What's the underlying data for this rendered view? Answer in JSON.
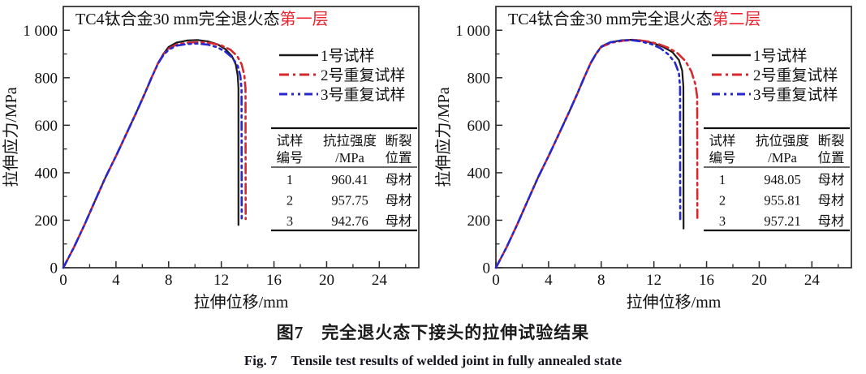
{
  "figure": {
    "caption_zh": "图7　完全退火态下接头的拉伸试验结果",
    "caption_en": "Fig. 7　Tensile test results of welded joint in fully annealed state"
  },
  "colors": {
    "series1": "#1a1a1a",
    "series2": "#d7282f",
    "series3": "#2727cd",
    "title_highlight": "#e8232e",
    "axis": "#2a2a2a",
    "text": "#111111"
  },
  "chart_data": [
    {
      "type": "line",
      "name": "layer1",
      "title_main": "TC4钛合金30 mm完全退火态",
      "title_highlight": "第一层",
      "xlabel": "拉伸位移/mm",
      "ylabel": "拉伸应力/MPa",
      "xlim": [
        0,
        27
      ],
      "ylim": [
        0,
        1100
      ],
      "xticks": [
        0,
        4,
        8,
        12,
        16,
        20,
        24
      ],
      "xminor": [
        2,
        6,
        10,
        14,
        18,
        22,
        26
      ],
      "yticks": [
        0,
        200,
        400,
        600,
        800,
        1000
      ],
      "ytick_labels": [
        "0",
        "200",
        "400",
        "600",
        "800",
        "1 000"
      ],
      "yminor": [
        100,
        300,
        500,
        700,
        900
      ],
      "series": [
        {
          "name": "1号试样",
          "color_key": "series1",
          "dash": "solid",
          "width": 2.2,
          "points": [
            [
              0,
              0
            ],
            [
              0.8,
              85
            ],
            [
              1.6,
              180
            ],
            [
              2.4,
              280
            ],
            [
              3.2,
              380
            ],
            [
              4,
              470
            ],
            [
              4.8,
              565
            ],
            [
              5.6,
              660
            ],
            [
              6.2,
              735
            ],
            [
              6.7,
              800
            ],
            [
              7.2,
              862
            ],
            [
              7.6,
              900
            ],
            [
              8.0,
              930
            ],
            [
              8.6,
              948
            ],
            [
              9.4,
              957
            ],
            [
              10.2,
              959
            ],
            [
              11,
              953
            ],
            [
              11.7,
              941
            ],
            [
              12.3,
              921
            ],
            [
              12.8,
              892
            ],
            [
              13.1,
              856
            ],
            [
              13.25,
              808
            ],
            [
              13.3,
              755
            ],
            [
              13.3,
              180
            ]
          ]
        },
        {
          "name": "2号重复试样",
          "color_key": "series2",
          "dash": "dashdot",
          "width": 2.6,
          "points": [
            [
              0,
              0
            ],
            [
              0.8,
              85
            ],
            [
              1.6,
              180
            ],
            [
              2.4,
              280
            ],
            [
              3.2,
              380
            ],
            [
              4,
              470
            ],
            [
              4.8,
              565
            ],
            [
              5.6,
              660
            ],
            [
              6.2,
              735
            ],
            [
              6.7,
              800
            ],
            [
              7.2,
              862
            ],
            [
              7.6,
              898
            ],
            [
              8.0,
              922
            ],
            [
              8.6,
              940
            ],
            [
              9.5,
              948
            ],
            [
              10.4,
              950
            ],
            [
              11.2,
              946
            ],
            [
              12,
              936
            ],
            [
              12.7,
              918
            ],
            [
              13.2,
              892
            ],
            [
              13.55,
              856
            ],
            [
              13.75,
              810
            ],
            [
              13.84,
              755
            ],
            [
              13.85,
              205
            ]
          ]
        },
        {
          "name": "3号重复试样",
          "color_key": "series3",
          "dash": "dashdotdot",
          "width": 2.6,
          "points": [
            [
              0,
              0
            ],
            [
              0.8,
              85
            ],
            [
              1.6,
              180
            ],
            [
              2.4,
              280
            ],
            [
              3.2,
              380
            ],
            [
              4,
              470
            ],
            [
              4.8,
              565
            ],
            [
              5.6,
              660
            ],
            [
              6.2,
              735
            ],
            [
              6.7,
              800
            ],
            [
              7.2,
              860
            ],
            [
              7.6,
              895
            ],
            [
              8.0,
              918
            ],
            [
              8.6,
              935
            ],
            [
              9.4,
              942
            ],
            [
              10.2,
              944
            ],
            [
              11,
              939
            ],
            [
              11.7,
              928
            ],
            [
              12.3,
              910
            ],
            [
              12.85,
              884
            ],
            [
              13.25,
              850
            ],
            [
              13.45,
              806
            ],
            [
              13.54,
              752
            ],
            [
              13.55,
              192
            ]
          ]
        }
      ],
      "table": {
        "header": [
          [
            "试样",
            "编号"
          ],
          [
            "抗拉强度",
            "/MPa"
          ],
          [
            "断裂",
            "位置"
          ]
        ],
        "rows": [
          [
            "1",
            "960.41",
            "母材"
          ],
          [
            "2",
            "957.75",
            "母材"
          ],
          [
            "3",
            "942.76",
            "母材"
          ]
        ]
      }
    },
    {
      "type": "line",
      "name": "layer2",
      "title_main": "TC4钛合金30 mm完全退火态",
      "title_highlight": "第二层",
      "xlabel": "拉伸位移/mm",
      "ylabel": "拉伸应力/MPa",
      "xlim": [
        0,
        27
      ],
      "ylim": [
        0,
        1100
      ],
      "xticks": [
        0,
        4,
        8,
        12,
        16,
        20,
        24
      ],
      "xminor": [
        2,
        6,
        10,
        14,
        18,
        22,
        26
      ],
      "yticks": [
        0,
        200,
        400,
        600,
        800,
        1000
      ],
      "ytick_labels": [
        "0",
        "200",
        "400",
        "600",
        "800",
        "1 000"
      ],
      "yminor": [
        100,
        300,
        500,
        700,
        900
      ],
      "series": [
        {
          "name": "1号试样",
          "color_key": "series1",
          "dash": "solid",
          "width": 2.2,
          "points": [
            [
              0,
              0
            ],
            [
              0.8,
              85
            ],
            [
              1.6,
              180
            ],
            [
              2.4,
              280
            ],
            [
              3.2,
              380
            ],
            [
              4,
              470
            ],
            [
              4.8,
              565
            ],
            [
              5.6,
              660
            ],
            [
              6.2,
              735
            ],
            [
              6.7,
              800
            ],
            [
              7.2,
              862
            ],
            [
              7.6,
              900
            ],
            [
              8.0,
              932
            ],
            [
              8.7,
              950
            ],
            [
              9.6,
              958
            ],
            [
              10.4,
              960
            ],
            [
              11.2,
              955
            ],
            [
              12,
              945
            ],
            [
              12.7,
              930
            ],
            [
              13.4,
              908
            ],
            [
              13.9,
              875
            ],
            [
              14.15,
              830
            ],
            [
              14.24,
              762
            ],
            [
              14.25,
              165
            ]
          ]
        },
        {
          "name": "2号重复试样",
          "color_key": "series2",
          "dash": "dashdot",
          "width": 2.6,
          "points": [
            [
              0,
              0
            ],
            [
              0.8,
              85
            ],
            [
              1.6,
              180
            ],
            [
              2.4,
              280
            ],
            [
              3.2,
              380
            ],
            [
              4,
              470
            ],
            [
              4.8,
              565
            ],
            [
              5.6,
              660
            ],
            [
              6.2,
              735
            ],
            [
              6.7,
              800
            ],
            [
              7.2,
              862
            ],
            [
              7.6,
              900
            ],
            [
              8.0,
              930
            ],
            [
              8.8,
              948
            ],
            [
              9.8,
              957
            ],
            [
              10.7,
              959
            ],
            [
              11.5,
              953
            ],
            [
              12.3,
              943
            ],
            [
              13.1,
              926
            ],
            [
              13.8,
              903
            ],
            [
              14.4,
              870
            ],
            [
              14.85,
              826
            ],
            [
              15.15,
              772
            ],
            [
              15.29,
              720
            ],
            [
              15.3,
              210
            ]
          ]
        },
        {
          "name": "3号重复试样",
          "color_key": "series3",
          "dash": "dashdotdot",
          "width": 2.6,
          "points": [
            [
              0,
              0
            ],
            [
              0.8,
              85
            ],
            [
              1.6,
              180
            ],
            [
              2.4,
              280
            ],
            [
              3.2,
              380
            ],
            [
              4,
              470
            ],
            [
              4.8,
              565
            ],
            [
              5.6,
              660
            ],
            [
              6.2,
              735
            ],
            [
              6.7,
              800
            ],
            [
              7.2,
              862
            ],
            [
              7.6,
              900
            ],
            [
              8.0,
              930
            ],
            [
              8.7,
              949
            ],
            [
              9.5,
              957
            ],
            [
              10.3,
              958
            ],
            [
              11,
              953
            ],
            [
              11.8,
              942
            ],
            [
              12.5,
              924
            ],
            [
              13.1,
              898
            ],
            [
              13.6,
              864
            ],
            [
              13.9,
              820
            ],
            [
              13.99,
              760
            ],
            [
              14.0,
              205
            ]
          ]
        }
      ],
      "table": {
        "header": [
          [
            "试样",
            "编号"
          ],
          [
            "抗位强度",
            "/MPa"
          ],
          [
            "断裂",
            "位置"
          ]
        ],
        "rows": [
          [
            "1",
            "948.05",
            "母材"
          ],
          [
            "2",
            "955.81",
            "母材"
          ],
          [
            "3",
            "957.21",
            "母材"
          ]
        ]
      }
    }
  ]
}
